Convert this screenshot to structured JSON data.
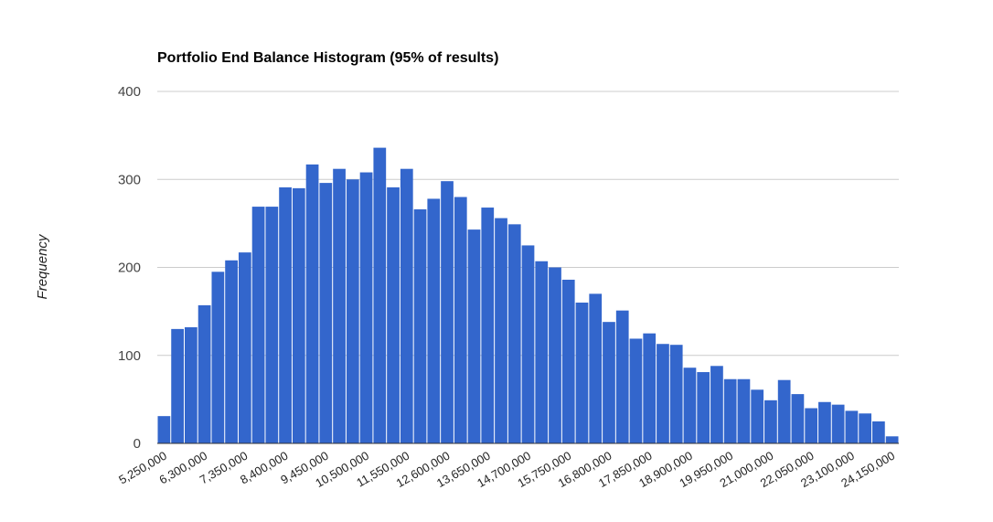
{
  "chart_data": {
    "type": "bar",
    "title": "Portfolio End Balance Histogram (95% of results)",
    "xlabel": "",
    "ylabel": "Frequency",
    "ylim": [
      0,
      400
    ],
    "yticks": [
      0,
      100,
      200,
      300,
      400
    ],
    "grid": true,
    "legend": "none",
    "color": "#3366cc",
    "xtick_labels": [
      "5,250,000",
      "6,300,000",
      "7,350,000",
      "8,400,000",
      "9,450,000",
      "10,500,000",
      "11,550,000",
      "12,600,000",
      "13,650,000",
      "14,700,000",
      "15,750,000",
      "16,800,000",
      "17,850,000",
      "18,900,000",
      "19,950,000",
      "21,000,000",
      "22,050,000",
      "23,100,000",
      "24,150,000"
    ],
    "values": [
      31,
      130,
      132,
      157,
      195,
      208,
      217,
      269,
      269,
      291,
      290,
      317,
      296,
      312,
      300,
      308,
      336,
      291,
      312,
      266,
      278,
      298,
      280,
      243,
      268,
      256,
      249,
      225,
      207,
      200,
      186,
      160,
      170,
      138,
      151,
      119,
      125,
      113,
      112,
      86,
      81,
      88,
      73,
      73,
      61,
      49,
      72,
      56,
      40,
      47,
      44,
      37,
      34,
      25,
      8
    ]
  }
}
